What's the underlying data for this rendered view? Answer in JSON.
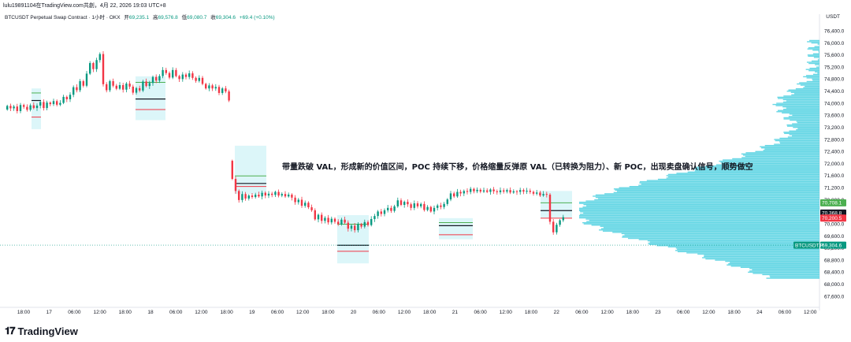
{
  "header": {
    "watermark_line": "lulu19891104在TradingView.com共創，4月 22, 2026 19:03 UTC+8",
    "symbol": "BTCUSDT Perpetual Swap Contract · 1小时 · OKX",
    "o_label": "开",
    "o_value": "69,235.1",
    "h_label": "高",
    "h_value": "69,576.8",
    "l_label": "低",
    "l_value": "69,080.7",
    "c_label": "收",
    "c_value": "69,304.6",
    "change": "+69.4 (+0.10%)"
  },
  "axis": {
    "currency": "USDT"
  },
  "brand": {
    "name": "TradingView"
  },
  "colors": {
    "up": "#089981",
    "down": "#f23645",
    "volume_profile": "#4dd0e1",
    "profile_highlight": "#b2ebf2"
  },
  "chart_data": {
    "type": "candlestick",
    "title": "",
    "annotation": "带量跌破 VAL，形成新的价值区间，POC 持续下移，价格缩量反弹原 VAL（已转换为阻力）、新 POC，出现卖盘确认信号，顺势做空",
    "ylim": [
      67400,
      76700
    ],
    "y_ticks": [
      "76,400.0",
      "76,000.0",
      "75,600.0",
      "75,200.0",
      "74,800.0",
      "74,400.0",
      "74,000.0",
      "73,600.0",
      "73,200.0",
      "72,800.0",
      "72,400.0",
      "72,000.0",
      "71,600.0",
      "71,200.0",
      "70,800.0",
      "70,400.0",
      "70,000.0",
      "69,600.0",
      "69,200.0",
      "68,800.0",
      "68,400.0",
      "68,000.0",
      "67,600.0"
    ],
    "x_ticks": [
      "18:00",
      "17",
      "06:00",
      "12:00",
      "18:00",
      "18",
      "06:00",
      "12:00",
      "18:00",
      "19",
      "06:00",
      "12:00",
      "18:00",
      "20",
      "06:00",
      "12:00",
      "18:00",
      "21",
      "06:00",
      "12:00",
      "18:00",
      "22",
      "06:00",
      "12:00",
      "18:00",
      "23",
      "06:00",
      "12:00",
      "18:00",
      "24",
      "06:00",
      "12:00"
    ],
    "price_labels": [
      {
        "text": "70,708.1",
        "value": 70708.1,
        "color": "#4caf50"
      },
      {
        "text": "70,368.8",
        "value": 70368.8,
        "color": "#131722"
      },
      {
        "text": "70,200.5",
        "value": 70200.5,
        "color": "#f23645"
      },
      {
        "text": "69,304.6",
        "value": 69304.6,
        "color": "#089981",
        "prefix": "BTCUSDT.P"
      }
    ],
    "segments": [
      {
        "start_close": 73800,
        "steps": [
          120,
          -80,
          60,
          -150,
          200,
          -60,
          -100,
          150,
          -90,
          80,
          120,
          -200,
          180,
          -50,
          100,
          -120,
          60,
          200,
          -80,
          150,
          250,
          -100,
          300,
          -150,
          400,
          350,
          -200,
          300,
          200,
          -1000,
          -200,
          300,
          -150,
          -100,
          120,
          -150,
          200,
          -100,
          -200,
          150,
          -80,
          300,
          -150,
          100,
          200,
          -120,
          150,
          200,
          -100,
          -150,
          250,
          -200,
          -100,
          150,
          -80,
          120,
          -150,
          -100,
          100,
          -200,
          -150,
          100,
          -100,
          50,
          -200,
          150,
          -100,
          -300
        ]
      },
      {
        "start_close": 72100,
        "steps": [
          -600,
          -400,
          -300,
          200,
          -150,
          100,
          -50,
          80,
          -60,
          120,
          -90,
          60,
          -40,
          100,
          -120,
          50,
          -80,
          60,
          -100,
          -150,
          80,
          -200,
          100,
          -150,
          -100,
          -300,
          150,
          -200,
          100,
          -150,
          120,
          -100,
          -80,
          150,
          -100,
          -200,
          100,
          -150,
          200,
          -80,
          150,
          -100,
          200,
          100,
          150,
          -80,
          120,
          80,
          -100,
          150,
          200,
          -150,
          100,
          -80,
          -120,
          150,
          -100,
          80,
          -200,
          100,
          -150,
          120,
          80,
          -50,
          100,
          150,
          200,
          -100,
          150,
          -50,
          80,
          -30,
          100,
          -80,
          50,
          -60,
          40,
          -50,
          80,
          -60,
          -30,
          60,
          -40,
          50,
          -80,
          40,
          -20,
          60,
          -50,
          30,
          -40,
          -60,
          40,
          -100,
          50,
          -20,
          -900,
          -350,
          250,
          150,
          100
        ]
      }
    ],
    "annotation_boxes": [
      {
        "t": [
          40,
          52
        ],
        "p": [
          73150,
          74500
        ],
        "poc": 74100,
        "vah": 74350,
        "val": 73550
      },
      {
        "t": [
          172,
          210
        ],
        "p": [
          73450,
          74900
        ],
        "poc": 74150,
        "vah": 74700,
        "val": 73800
      },
      {
        "t": [
          298,
          338
        ],
        "p": [
          71000,
          72600
        ],
        "poc": 71350,
        "vah": 71600,
        "val": 71250
      },
      {
        "t": [
          428,
          468
        ],
        "p": [
          68700,
          70300
        ],
        "poc": 69300,
        "vah": 70000,
        "val": 69100
      },
      {
        "t": [
          557,
          600
        ],
        "p": [
          69500,
          70200
        ],
        "poc": 69950,
        "vah": 70050,
        "val": 69650
      },
      {
        "t": [
          686,
          726
        ],
        "p": [
          70200,
          71100
        ],
        "poc": 70450,
        "vah": 70708,
        "val": 70200
      }
    ],
    "volume_profile": {
      "from": 68200,
      "to": 76100,
      "peak": 70400,
      "grid": "no"
    },
    "grid": false
  }
}
